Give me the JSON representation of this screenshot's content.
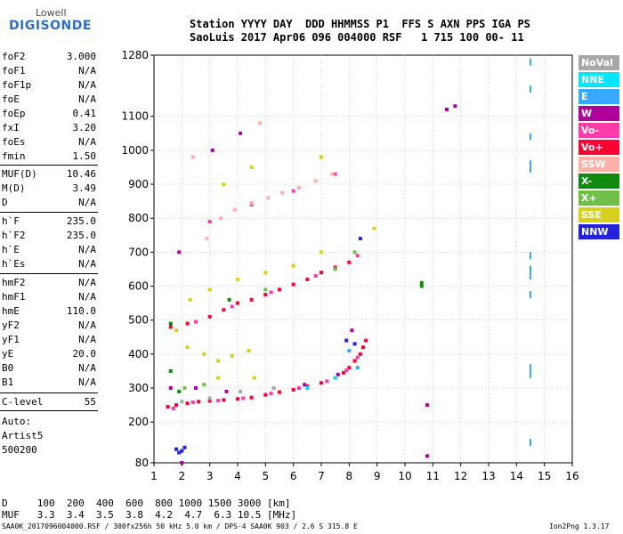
{
  "logo": {
    "top": "Lowell",
    "main": "DIGISONDE"
  },
  "header": {
    "line1": "Station YYYY DAY  DDD HHMMSS P1  FFS S AXN PPS IGA PS",
    "line2": "SaoLuis 2017 Apr06 096 004000 RSF   1 715 100 00- 11"
  },
  "params": {
    "g1": [
      {
        "name": "foF2",
        "value": "3.000"
      },
      {
        "name": "foF1",
        "value": "N/A"
      },
      {
        "name": "foF1p",
        "value": "N/A"
      },
      {
        "name": "foE",
        "value": "N/A"
      },
      {
        "name": "foEp",
        "value": "0.41"
      },
      {
        "name": "fxI",
        "value": "3.20"
      },
      {
        "name": "foEs",
        "value": "N/A"
      },
      {
        "name": "fmin",
        "value": "1.50"
      }
    ],
    "g2": [
      {
        "name": "MUF(D)",
        "value": "10.46"
      },
      {
        "name": "M(D)",
        "value": "3.49"
      },
      {
        "name": "D",
        "value": "N/A"
      }
    ],
    "g3": [
      {
        "name": "h`F",
        "value": "235.0"
      },
      {
        "name": "h`F2",
        "value": "235.0"
      },
      {
        "name": "h`E",
        "value": "N/A"
      },
      {
        "name": "h`Es",
        "value": "N/A"
      }
    ],
    "g4": [
      {
        "name": "hmF2",
        "value": "N/A"
      },
      {
        "name": "hmF1",
        "value": "N/A"
      },
      {
        "name": "hmE",
        "value": "110.0"
      },
      {
        "name": "yF2",
        "value": "N/A"
      },
      {
        "name": "yF1",
        "value": "N/A"
      },
      {
        "name": "yE",
        "value": "20.0"
      },
      {
        "name": "B0",
        "value": "N/A"
      },
      {
        "name": "B1",
        "value": "N/A"
      }
    ],
    "g5": [
      {
        "name": "C-level",
        "value": "55"
      }
    ],
    "auto": [
      "Auto:",
      "Artist5",
      "500200"
    ]
  },
  "legend": [
    {
      "label": "NoVal",
      "color": "#a8a8a8"
    },
    {
      "label": "NNE",
      "color": "#00e6ff"
    },
    {
      "label": "E",
      "color": "#3aa8ff"
    },
    {
      "label": "W",
      "color": "#b0009c"
    },
    {
      "label": "Vo-",
      "color": "#ff3ca8"
    },
    {
      "label": "Vo+",
      "color": "#ff0033"
    },
    {
      "label": "SSW",
      "color": "#ffb0a8"
    },
    {
      "label": "X-",
      "color": "#0f8a0f"
    },
    {
      "label": "X+",
      "color": "#6fbf4a"
    },
    {
      "label": "SSE",
      "color": "#d8d020"
    },
    {
      "label": "NNW",
      "color": "#2222dd"
    }
  ],
  "mufline": {
    "d": "D     100  200  400  600  800 1000 1500 3000 [km]",
    "muf": "MUF   3.3  3.4  3.5  3.8  4.2  4.7  6.3 10.5 [MHz]"
  },
  "footer": {
    "left": "SAA0K_2017096004000.RSF / 300fx256h 50 kHz 5.0 km / DPS-4 SAA0K 903 / 2.6 S 315.8 E",
    "right": "Ion2Png 1.3.17"
  },
  "chart_data": {
    "type": "scatter",
    "title": "",
    "xlabel": "",
    "ylabel": "",
    "xlim": [
      1,
      16
    ],
    "ylim": [
      80,
      1280
    ],
    "x_ticks": [
      1,
      2,
      3,
      4,
      5,
      6,
      7,
      8,
      9,
      10,
      11,
      12,
      13,
      14,
      15,
      16
    ],
    "y_ticks": [
      80,
      200,
      300,
      400,
      500,
      600,
      700,
      800,
      900,
      1000,
      1100,
      1280
    ],
    "grid": true,
    "legend_position": "right",
    "series": [
      {
        "name": "Vo+",
        "color": "#ff0033",
        "points": [
          [
            1.5,
            245
          ],
          [
            1.8,
            250
          ],
          [
            2.2,
            255
          ],
          [
            2.6,
            260
          ],
          [
            3.0,
            262
          ],
          [
            3.5,
            265
          ],
          [
            4.0,
            268
          ],
          [
            4.5,
            272
          ],
          [
            5.0,
            280
          ],
          [
            5.5,
            288
          ],
          [
            6.0,
            295
          ],
          [
            6.5,
            305
          ],
          [
            7.0,
            315
          ],
          [
            7.5,
            330
          ],
          [
            7.8,
            345
          ],
          [
            8.0,
            360
          ],
          [
            8.2,
            380
          ],
          [
            8.4,
            400
          ],
          [
            8.5,
            420
          ],
          [
            8.6,
            440
          ],
          [
            1.6,
            480
          ],
          [
            2.2,
            490
          ],
          [
            3.0,
            510
          ],
          [
            3.5,
            530
          ],
          [
            4.0,
            550
          ],
          [
            4.5,
            560
          ],
          [
            5.0,
            575
          ],
          [
            5.5,
            590
          ],
          [
            6.0,
            605
          ],
          [
            6.5,
            620
          ],
          [
            7.0,
            640
          ],
          [
            7.5,
            655
          ],
          [
            8.0,
            670
          ]
        ]
      },
      {
        "name": "Vo-",
        "color": "#ff3ca8",
        "points": [
          [
            1.7,
            240
          ],
          [
            2.4,
            258
          ],
          [
            3.3,
            263
          ],
          [
            4.2,
            270
          ],
          [
            5.2,
            284
          ],
          [
            6.2,
            300
          ],
          [
            7.2,
            320
          ],
          [
            7.9,
            352
          ],
          [
            8.3,
            390
          ],
          [
            2.5,
            495
          ],
          [
            3.8,
            540
          ],
          [
            5.2,
            582
          ],
          [
            6.8,
            630
          ],
          [
            8.3,
            690
          ],
          [
            3.0,
            790
          ],
          [
            4.5,
            840
          ],
          [
            6.0,
            880
          ],
          [
            7.5,
            930
          ]
        ]
      },
      {
        "name": "W",
        "color": "#b0009c",
        "points": [
          [
            1.6,
            300
          ],
          [
            2.5,
            300
          ],
          [
            3.6,
            290
          ],
          [
            6.4,
            310
          ],
          [
            7.6,
            340
          ],
          [
            8.1,
            470
          ],
          [
            10.8,
            250
          ],
          [
            10.8,
            100
          ],
          [
            11.8,
            1130
          ],
          [
            11.5,
            1120
          ],
          [
            2.0,
            80
          ],
          [
            1.9,
            700
          ],
          [
            3.1,
            1000
          ],
          [
            4.1,
            1050
          ]
        ]
      },
      {
        "name": "SSW",
        "color": "#ffb0a8",
        "points": [
          [
            2.9,
            740
          ],
          [
            3.4,
            800
          ],
          [
            3.9,
            825
          ],
          [
            4.5,
            845
          ],
          [
            5.1,
            860
          ],
          [
            5.6,
            875
          ],
          [
            6.2,
            890
          ],
          [
            6.8,
            910
          ],
          [
            7.4,
            930
          ],
          [
            4.8,
            1080
          ],
          [
            2.4,
            980
          ]
        ]
      },
      {
        "name": "X-",
        "color": "#0f8a0f",
        "points": [
          [
            1.6,
            490
          ],
          [
            1.6,
            350
          ],
          [
            1.9,
            290
          ],
          [
            10.6,
            610
          ],
          [
            10.6,
            600
          ],
          [
            3.7,
            560
          ]
        ]
      },
      {
        "name": "X+",
        "color": "#6fbf4a",
        "points": [
          [
            2.1,
            300
          ],
          [
            2.8,
            310
          ],
          [
            5.0,
            590
          ],
          [
            7.5,
            650
          ],
          [
            8.2,
            700
          ]
        ]
      },
      {
        "name": "SSE",
        "color": "#d8d020",
        "points": [
          [
            2.2,
            420
          ],
          [
            2.8,
            400
          ],
          [
            3.3,
            380
          ],
          [
            3.8,
            395
          ],
          [
            4.4,
            410
          ],
          [
            3.3,
            330
          ],
          [
            4.6,
            330
          ],
          [
            1.8,
            470
          ],
          [
            2.3,
            560
          ],
          [
            3.0,
            590
          ],
          [
            4.0,
            620
          ],
          [
            5.0,
            640
          ],
          [
            6.0,
            660
          ],
          [
            7.0,
            700
          ],
          [
            8.9,
            770
          ],
          [
            3.5,
            900
          ],
          [
            4.5,
            950
          ],
          [
            7.0,
            980
          ]
        ]
      },
      {
        "name": "NNW",
        "color": "#2222dd",
        "points": [
          [
            1.8,
            120
          ],
          [
            1.9,
            110
          ],
          [
            2.0,
            115
          ],
          [
            2.1,
            125
          ],
          [
            7.9,
            440
          ],
          [
            8.2,
            430
          ],
          [
            8.4,
            740
          ]
        ]
      },
      {
        "name": "NNE",
        "color": "#00e6ff",
        "points": [
          [
            6.5,
            300
          ],
          [
            7.5,
            330
          ]
        ]
      },
      {
        "name": "E",
        "color": "#3aa8ff",
        "points": [
          [
            14.5,
            1260
          ],
          [
            14.5,
            1180
          ],
          [
            14.5,
            1040
          ],
          [
            14.5,
            960
          ],
          [
            14.5,
            945
          ],
          [
            14.5,
            690
          ],
          [
            14.5,
            650
          ],
          [
            14.5,
            630
          ],
          [
            14.5,
            575
          ],
          [
            14.5,
            360
          ],
          [
            14.5,
            340
          ],
          [
            14.5,
            140
          ],
          [
            8.0,
            410
          ],
          [
            8.3,
            360
          ]
        ]
      },
      {
        "name": "NoVal",
        "color": "#a8a8a8",
        "points": [
          [
            2.0,
            260
          ],
          [
            3.0,
            270
          ],
          [
            4.1,
            290
          ],
          [
            5.3,
            300
          ]
        ]
      }
    ]
  }
}
